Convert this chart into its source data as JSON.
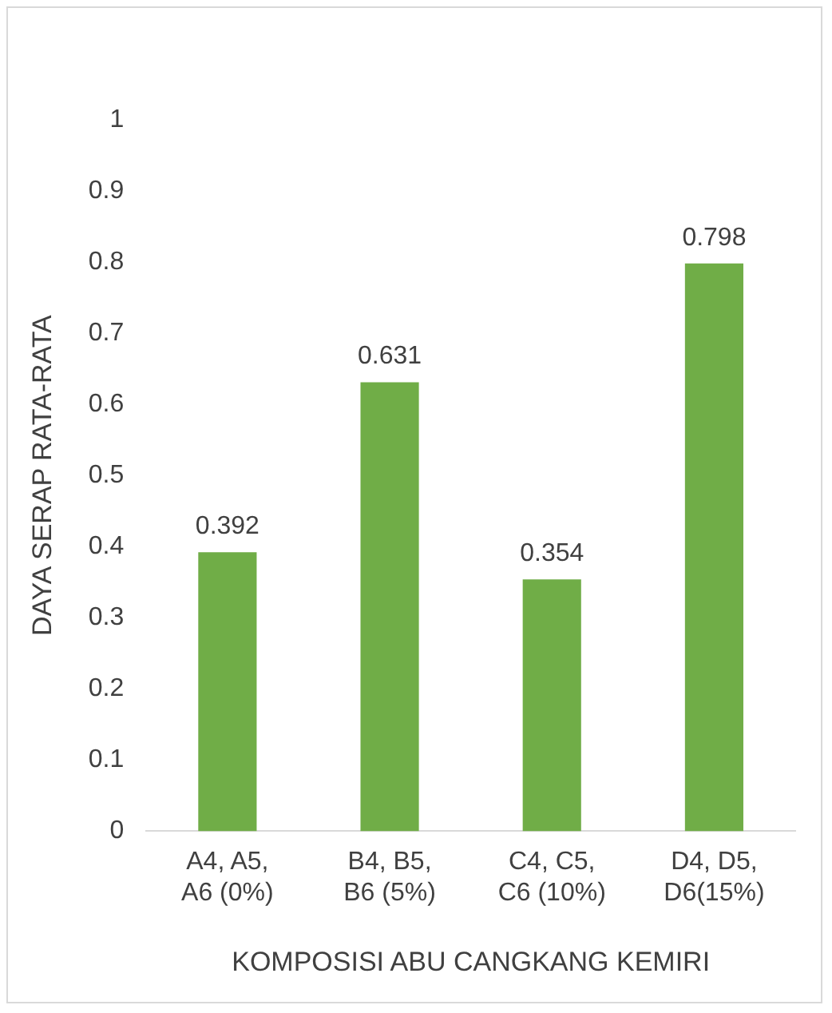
{
  "chart_data": {
    "type": "bar",
    "xlabel": "KOMPOSISI ABU CANGKANG KEMIRI",
    "ylabel": "DAYA SERAP RATA-RATA",
    "categories": [
      "A4, A5, A6 (0%)",
      "B4, B5, B6 (5%)",
      "C4, C5, C6 (10%)",
      "D4, D5, D6(15%)"
    ],
    "values": [
      0.392,
      0.631,
      0.354,
      0.798
    ],
    "color": "#70ad47",
    "ylim": [
      0,
      1
    ],
    "yticks": [
      0,
      0.1,
      0.2,
      0.3,
      0.4,
      0.5,
      0.6,
      0.7,
      0.8,
      0.9,
      1
    ],
    "grid": false,
    "legend": false,
    "data_labels": true
  }
}
